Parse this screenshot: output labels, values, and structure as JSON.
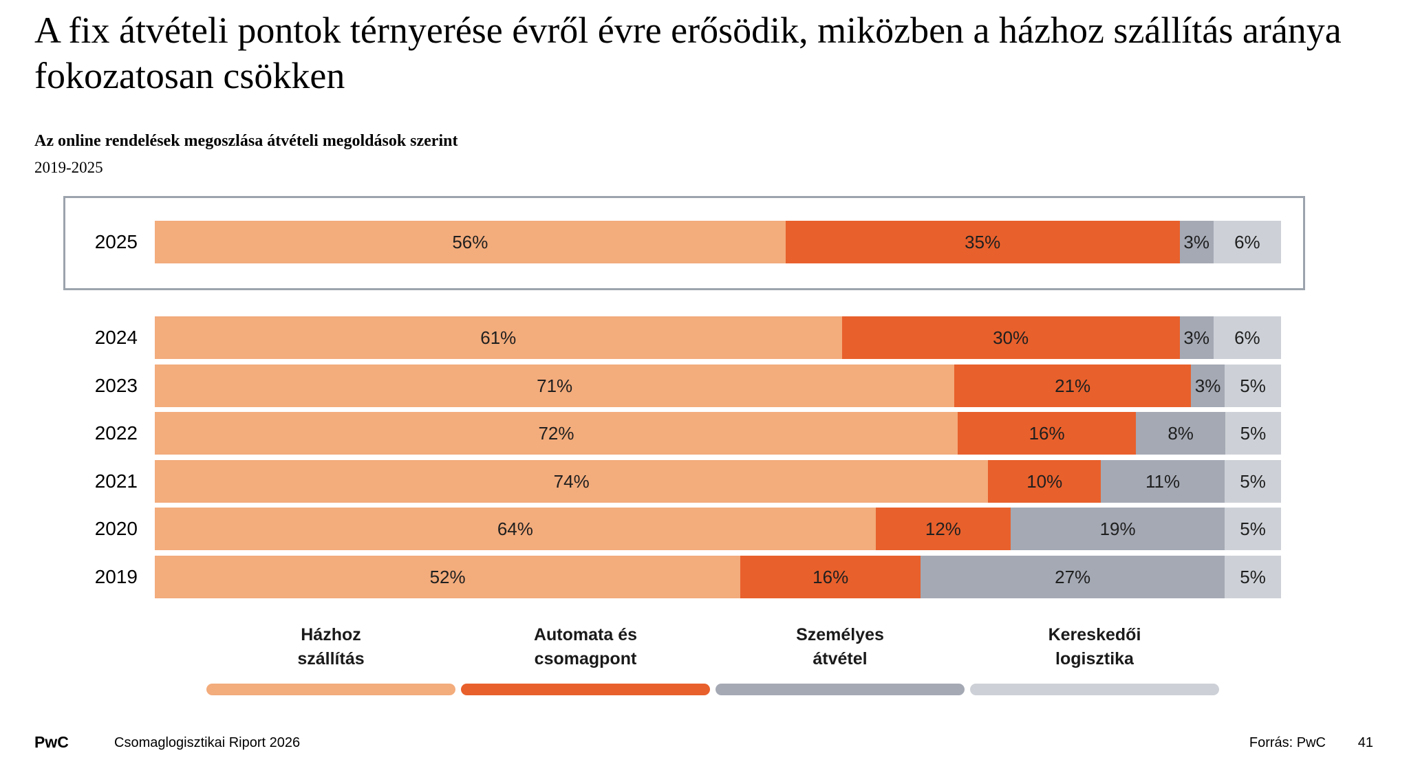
{
  "title": "A fix átvételi pontok térnyerése évről évre erősödik, miközben a házhoz szállítás aránya fokozatosan csökken",
  "subtitle": "Az online rendelések megoszlása átvételi megoldások szerint",
  "period": "2019-2025",
  "colors": {
    "hazhoz_szallitas": "#F3AC7C",
    "automata_es_csomagpont": "#E8602C",
    "szemelyes_atvetel": "#A4A9B4",
    "kereskedoi_logisztika": "#CDD1D7",
    "highlight_border": "#9CA3AD",
    "label_text": "#1f1f1f"
  },
  "chart_data": {
    "type": "bar",
    "orientation": "horizontal-stacked",
    "unit": "%",
    "title": "Az online rendelések megoszlása átvételi megoldások szerint",
    "xlim": [
      0,
      100
    ],
    "grid": false,
    "legend_position": "bottom",
    "series_names": [
      "Házhoz szállítás",
      "Automata és csomagpont",
      "Személyes átvétel",
      "Kereskedői logisztika"
    ],
    "series_keys": [
      "hazhoz-szallitas",
      "automata-es-csomagpont",
      "szemelyes-atvetel",
      "kereskedoi-logisztika"
    ],
    "series_colors": [
      "#F3AC7C",
      "#E8602C",
      "#A4A9B4",
      "#CDD1D7"
    ],
    "categories": [
      "2025",
      "2024",
      "2023",
      "2022",
      "2021",
      "2020",
      "2019"
    ],
    "rows": [
      {
        "year": "2025",
        "highlighted": true,
        "values": [
          56,
          35,
          3,
          6
        ],
        "labels": [
          "56%",
          "35%",
          "3%",
          "6%"
        ]
      },
      {
        "year": "2024",
        "highlighted": false,
        "values": [
          61,
          30,
          3,
          6
        ],
        "labels": [
          "61%",
          "30%",
          "3%",
          "6%"
        ]
      },
      {
        "year": "2023",
        "highlighted": false,
        "values": [
          71,
          21,
          3,
          5
        ],
        "labels": [
          "71%",
          "21%",
          "3%",
          "5%"
        ]
      },
      {
        "year": "2022",
        "highlighted": false,
        "values": [
          72,
          16,
          8,
          5
        ],
        "labels": [
          "72%",
          "16%",
          "8%",
          "5%"
        ]
      },
      {
        "year": "2021",
        "highlighted": false,
        "values": [
          74,
          10,
          11,
          5
        ],
        "labels": [
          "74%",
          "10%",
          "11%",
          "5%"
        ]
      },
      {
        "year": "2020",
        "highlighted": false,
        "values": [
          64,
          12,
          19,
          5
        ],
        "labels": [
          "64%",
          "12%",
          "19%",
          "5%"
        ]
      },
      {
        "year": "2019",
        "highlighted": false,
        "values": [
          52,
          16,
          27,
          5
        ],
        "labels": [
          "52%",
          "16%",
          "27%",
          "5%"
        ]
      }
    ],
    "legend": [
      {
        "label": "Házhoz\nszállítás",
        "color": "#F3AC7C"
      },
      {
        "label": "Automata és\ncsomagpont",
        "color": "#E8602C"
      },
      {
        "label": "Személyes\nátvétel",
        "color": "#A4A9B4"
      },
      {
        "label": "Kereskedői\nlogisztika",
        "color": "#CDD1D7"
      }
    ]
  },
  "footer": {
    "brand": "PwC",
    "report": "Csomaglogisztikai Riport 2026",
    "source": "Forrás: PwC",
    "page": "41"
  }
}
